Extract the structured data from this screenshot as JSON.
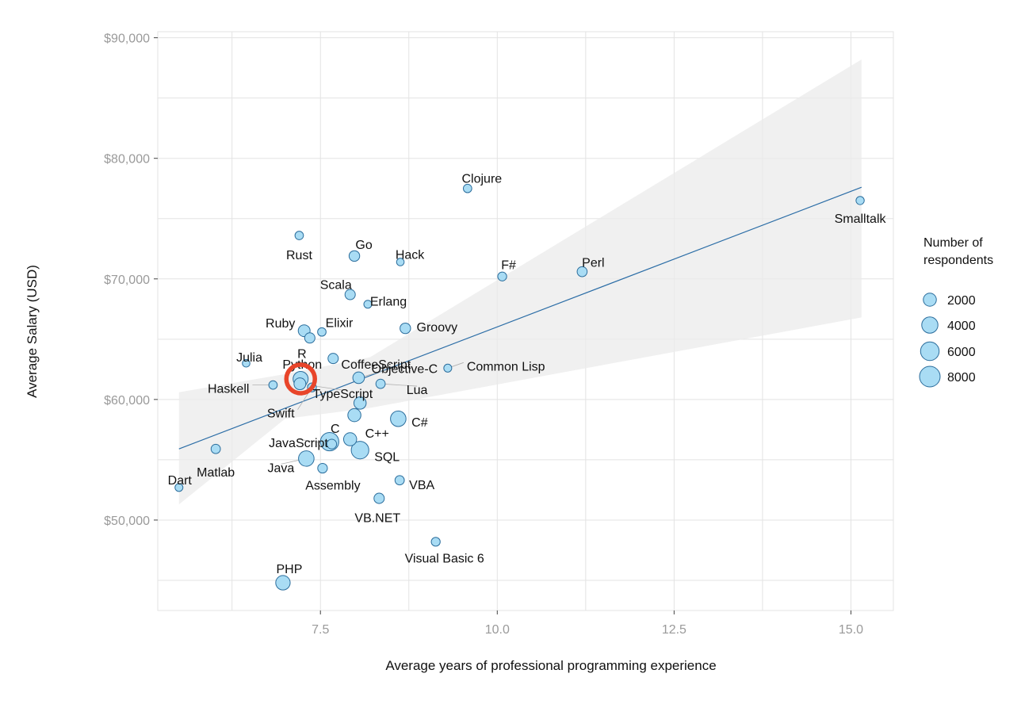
{
  "chart_data": {
    "type": "scatter",
    "variant": "bubble",
    "title": "",
    "xlabel": "Average years of professional programming experience",
    "ylabel": "Average Salary (USD)",
    "xlim": [
      5.2,
      15.6
    ],
    "ylim": [
      42500,
      90500
    ],
    "x_ticks": [
      7.5,
      10.0,
      12.5,
      15.0
    ],
    "x_tick_labels": [
      "7.5",
      "10.0",
      "12.5",
      "15.0"
    ],
    "y_ticks": [
      50000,
      60000,
      70000,
      80000,
      90000
    ],
    "y_tick_labels": [
      "$50,000",
      "$60,000",
      "$70,000",
      "$80,000",
      "$90,000"
    ],
    "grid": true,
    "colors": {
      "bubble_fill": "#a9dcf4",
      "bubble_stroke": "#2b6d9c",
      "trend_line": "#2b6da6",
      "confidence_band": "#ebebeb",
      "highlight_circle": "#e8452a",
      "grid": "#e3e3e3",
      "tick_mark": "#444444"
    },
    "trend_line": {
      "x": [
        5.5,
        15.15
      ],
      "y": [
        55900,
        77600
      ]
    },
    "confidence_band": {
      "x": [
        5.5,
        7.0,
        8.2,
        15.15
      ],
      "upper": [
        60600,
        62100,
        63500,
        88200
      ],
      "lower": [
        51300,
        58400,
        59300,
        66800
      ]
    },
    "highlight": {
      "label": "Python",
      "x": 7.22,
      "y": 61700
    },
    "legend": {
      "title_lines": [
        "Number of",
        "respondents"
      ],
      "position": "right",
      "sizes": [
        2000,
        4000,
        6000,
        8000
      ],
      "labels": [
        "2000",
        "4000",
        "6000",
        "8000"
      ]
    },
    "points": [
      {
        "label": "Clojure",
        "x": 9.58,
        "y": 77500,
        "n": 300
      },
      {
        "label": "Smalltalk",
        "x": 15.13,
        "y": 76500,
        "n": 250
      },
      {
        "label": "Rust",
        "x": 7.2,
        "y": 73600,
        "n": 300
      },
      {
        "label": "Go",
        "x": 7.98,
        "y": 71900,
        "n": 900
      },
      {
        "label": "Hack",
        "x": 8.63,
        "y": 71400,
        "n": 150
      },
      {
        "label": "F#",
        "x": 10.07,
        "y": 70200,
        "n": 400
      },
      {
        "label": "Perl",
        "x": 11.2,
        "y": 70600,
        "n": 700
      },
      {
        "label": "Scala",
        "x": 7.92,
        "y": 68700,
        "n": 800
      },
      {
        "label": "Erlang",
        "x": 8.17,
        "y": 67900,
        "n": 200
      },
      {
        "label": "Ruby",
        "x": 7.27,
        "y": 65700,
        "n": 1400
      },
      {
        "label": "Elixir",
        "x": 7.52,
        "y": 65600,
        "n": 300
      },
      {
        "label": "R",
        "x": 7.35,
        "y": 65100,
        "n": 800
      },
      {
        "label": "Groovy",
        "x": 8.7,
        "y": 65900,
        "n": 900
      },
      {
        "label": "CoffeeScript",
        "x": 7.68,
        "y": 63400,
        "n": 800
      },
      {
        "label": "Julia",
        "x": 6.45,
        "y": 63000,
        "n": 150
      },
      {
        "label": "Common Lisp",
        "x": 9.3,
        "y": 62600,
        "n": 200
      },
      {
        "label": "Objective-C",
        "x": 8.04,
        "y": 61800,
        "n": 1300
      },
      {
        "label": "Python",
        "x": 7.22,
        "y": 61700,
        "n": 3200
      },
      {
        "label": "Lua",
        "x": 8.35,
        "y": 61300,
        "n": 500
      },
      {
        "label": "TypeScript",
        "x": 7.21,
        "y": 61300,
        "n": 1400
      },
      {
        "label": "Haskell",
        "x": 6.83,
        "y": 61200,
        "n": 300
      },
      {
        "label": "Swift",
        "x": 7.38,
        "y": 61000,
        "n": 400
      },
      {
        "label": "",
        "x": 8.06,
        "y": 59700,
        "n": 1600
      },
      {
        "label": "",
        "x": 7.98,
        "y": 58700,
        "n": 2000
      },
      {
        "label": "C#",
        "x": 8.6,
        "y": 58400,
        "n": 3500
      },
      {
        "label": "C++",
        "x": 7.92,
        "y": 56700,
        "n": 2000
      },
      {
        "label": "C",
        "x": 7.63,
        "y": 56500,
        "n": 5800
      },
      {
        "label": "JavaScript",
        "x": 7.66,
        "y": 56300,
        "n": 600
      },
      {
        "label": "SQL",
        "x": 8.06,
        "y": 55800,
        "n": 5100
      },
      {
        "label": "Java",
        "x": 7.3,
        "y": 55100,
        "n": 3500
      },
      {
        "label": "Matlab",
        "x": 6.02,
        "y": 55900,
        "n": 500
      },
      {
        "label": "Assembly",
        "x": 7.53,
        "y": 54300,
        "n": 600
      },
      {
        "label": "Dart",
        "x": 5.5,
        "y": 52700,
        "n": 200
      },
      {
        "label": "VBA",
        "x": 8.62,
        "y": 53300,
        "n": 500
      },
      {
        "label": "VB.NET",
        "x": 8.33,
        "y": 51800,
        "n": 800
      },
      {
        "label": "Visual Basic 6",
        "x": 9.13,
        "y": 48200,
        "n": 400
      },
      {
        "label": "PHP",
        "x": 6.97,
        "y": 44800,
        "n": 2800
      }
    ]
  }
}
